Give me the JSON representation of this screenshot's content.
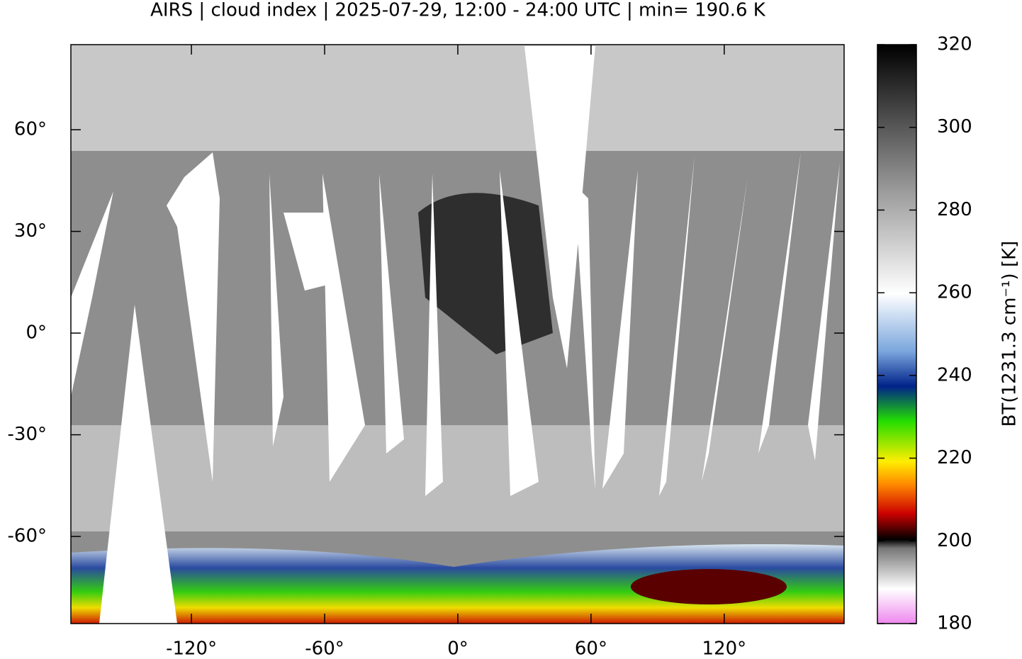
{
  "chart_data": {
    "type": "map",
    "title": "AIRS | cloud index | 2025-07-29, 12:00 - 24:00 UTC | min= 190.6 K",
    "xlim": [
      -174.3,
      174
    ],
    "ylim": [
      -85.7,
      85.1
    ],
    "xticks": [
      {
        "value": -120,
        "label": "-120°"
      },
      {
        "value": -60,
        "label": "-60°"
      },
      {
        "value": 0,
        "label": "0°"
      },
      {
        "value": 60,
        "label": "60°"
      },
      {
        "value": 120,
        "label": "120°"
      }
    ],
    "yticks": [
      {
        "value": -60,
        "label": "-60°"
      },
      {
        "value": -30,
        "label": "-30°"
      },
      {
        "value": 0,
        "label": "0°"
      },
      {
        "value": 30,
        "label": "30°"
      },
      {
        "value": 60,
        "label": "60°"
      }
    ],
    "colorbar": {
      "label": "BT(1231.3 cm⁻¹) [K]",
      "lim": [
        180,
        320
      ],
      "ticks": [
        180,
        200,
        220,
        240,
        260,
        280,
        300,
        320
      ]
    }
  }
}
